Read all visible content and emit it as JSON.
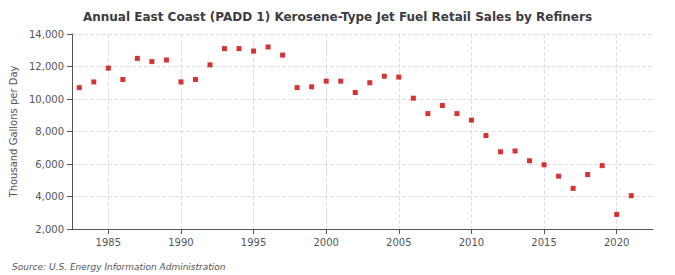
{
  "chart_data": {
    "type": "scatter",
    "title": "Annual East Coast (PADD 1) Kerosene-Type Jet Fuel Retail Sales by Refiners",
    "ylabel": "Thousand Gallons per Day",
    "annotations": [
      "Source: U.S. Energy Information Administration"
    ],
    "x": [
      1983,
      1984,
      1985,
      1986,
      1987,
      1988,
      1989,
      1990,
      1991,
      1992,
      1993,
      1994,
      1995,
      1996,
      1997,
      1998,
      1999,
      2000,
      2001,
      2002,
      2003,
      2004,
      2005,
      2006,
      2007,
      2008,
      2009,
      2010,
      2011,
      2012,
      2013,
      2014,
      2015,
      2016,
      2017,
      2018,
      2019,
      2020,
      2021
    ],
    "values": [
      10700,
      11050,
      11900,
      11200,
      12500,
      12300,
      12400,
      11050,
      11200,
      12100,
      13100,
      13100,
      12950,
      13200,
      12700,
      10700,
      10750,
      11100,
      11100,
      10400,
      11000,
      11400,
      11350,
      10050,
      9100,
      9600,
      9100,
      8700,
      7750,
      6750,
      6800,
      6200,
      5950,
      5250,
      4500,
      5350,
      5900,
      2900,
      4050
    ],
    "color": "#cc0000",
    "marker": "square",
    "xlim": [
      1982.5,
      2022.5
    ],
    "xticks": [
      1985,
      1990,
      1995,
      2000,
      2005,
      2010,
      2015,
      2020
    ],
    "ylim": [
      2000,
      14000
    ],
    "yticks": [
      {
        "value": 2000,
        "label": "2,000"
      },
      {
        "value": 4000,
        "label": "4,000"
      },
      {
        "value": 6000,
        "label": "6,000"
      },
      {
        "value": 8000,
        "label": "8,000"
      },
      {
        "value": 10000,
        "label": "10,000"
      },
      {
        "value": 12000,
        "label": "12,000"
      },
      {
        "value": 14000,
        "label": "14,000"
      }
    ],
    "grid": true
  }
}
